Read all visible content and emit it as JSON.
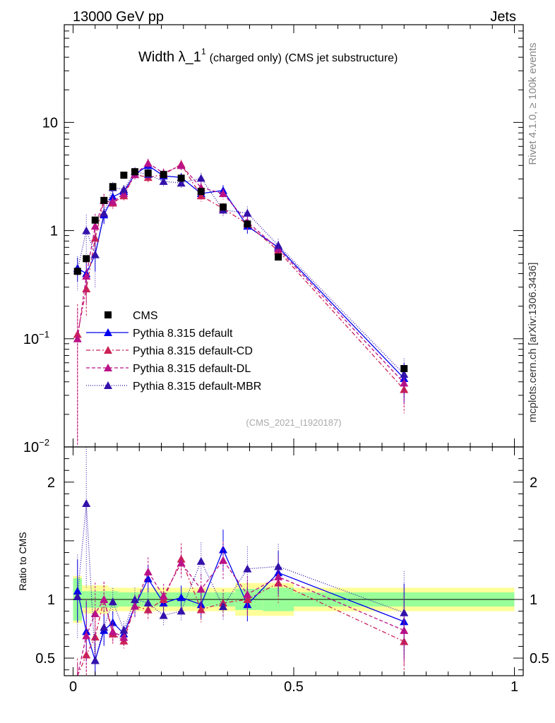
{
  "header": {
    "energy": "13000 GeV pp",
    "category": "Jets"
  },
  "side": {
    "rivet": "Rivet 4.1.0, ≥ 100k events",
    "mcplots": "mcplots.cern.ch [arXiv:1306.3436]"
  },
  "chart_data": {
    "type": "scatter",
    "title_main": "Width λ_1",
    "title_sup": "1",
    "title_rest": "(charged only) (CMS jet substructure)",
    "analysis_id": "(CMS_2021_I1920187)",
    "xlabel": "",
    "ylabel": "",
    "ratio_ylabel": "Ratio to CMS",
    "xlim": [
      -0.02,
      1.02
    ],
    "ylim_main": [
      0.01,
      80
    ],
    "ylim_ratio": [
      0.35,
      2.3
    ],
    "yscale_main": "log",
    "x_tick_labels": [
      "0",
      "0.5",
      "1"
    ],
    "main_y_tick_labels": [
      {
        "base": "10",
        "exp": "−2",
        "value": 0.01
      },
      {
        "base": "10",
        "exp": "−1",
        "value": 0.1
      },
      {
        "base": "1",
        "exp": "",
        "value": 1
      },
      {
        "base": "10",
        "exp": "",
        "value": 10
      }
    ],
    "ratio_y_tick_labels": [
      "0.5",
      "1",
      "2"
    ],
    "legend_position": "lower-left",
    "x": [
      0.01,
      0.03,
      0.05,
      0.07,
      0.09,
      0.115,
      0.14,
      0.17,
      0.205,
      0.245,
      0.29,
      0.34,
      0.395,
      0.465,
      0.75
    ],
    "cms": {
      "name": "CMS",
      "color": "#000000",
      "values": [
        0.42,
        0.55,
        1.25,
        1.9,
        2.55,
        3.25,
        3.5,
        3.4,
        3.3,
        3.05,
        2.3,
        1.65,
        1.15,
        0.57,
        0.053
      ],
      "band_inner": [
        0.18,
        0.07,
        0.07,
        0.07,
        0.07,
        0.06,
        0.06,
        0.06,
        0.06,
        0.06,
        0.06,
        0.06,
        0.09,
        0.1,
        0.06
      ],
      "band_outer": [
        0.2,
        0.12,
        0.12,
        0.12,
        0.1,
        0.1,
        0.1,
        0.1,
        0.1,
        0.1,
        0.1,
        0.1,
        0.14,
        0.14,
        0.1
      ]
    },
    "series": [
      {
        "name": "Pythia 8.315 default",
        "color": "#0000ee",
        "dash": "",
        "values": [
          0.45,
          0.4,
          0.6,
          1.4,
          2.05,
          2.3,
          3.3,
          4.0,
          3.2,
          3.1,
          2.2,
          2.35,
          1.1,
          0.7,
          0.043
        ],
        "rel_err": [
          0.25,
          0.35,
          0.3,
          0.18,
          0.12,
          0.1,
          0.1,
          0.1,
          0.1,
          0.1,
          0.12,
          0.12,
          0.15,
          0.15,
          0.4
        ]
      },
      {
        "name": "Pythia 8.315 default-CD",
        "color": "#cc2255",
        "dash": "6,3,2,3",
        "values": [
          0.11,
          0.29,
          0.85,
          1.9,
          1.8,
          2.1,
          3.3,
          3.1,
          3.3,
          4.1,
          2.1,
          1.6,
          1.15,
          0.65,
          0.034
        ],
        "rel_err": [
          0.9,
          0.45,
          0.3,
          0.15,
          0.12,
          0.1,
          0.1,
          0.1,
          0.1,
          0.1,
          0.12,
          0.12,
          0.15,
          0.15,
          0.4
        ]
      },
      {
        "name": "Pythia 8.315 default-DL",
        "color": "#bb1188",
        "dash": "5,3",
        "values": [
          0.1,
          0.38,
          1.1,
          1.9,
          1.85,
          2.2,
          3.3,
          4.2,
          3.4,
          4.0,
          2.5,
          2.2,
          1.2,
          0.68,
          0.039
        ],
        "rel_err": [
          0.9,
          0.45,
          0.3,
          0.15,
          0.12,
          0.1,
          0.1,
          0.1,
          0.1,
          0.1,
          0.12,
          0.12,
          0.15,
          0.15,
          0.4
        ]
      },
      {
        "name": "Pythia 8.315 default-MBR",
        "color": "#3311aa",
        "dash": "1,2",
        "values": [
          0.43,
          1.0,
          0.6,
          1.45,
          2.5,
          2.4,
          3.5,
          3.3,
          2.85,
          2.75,
          3.05,
          1.55,
          1.45,
          0.73,
          0.047
        ],
        "rel_err": [
          0.35,
          0.4,
          0.5,
          0.2,
          0.12,
          0.1,
          0.1,
          0.1,
          0.1,
          0.1,
          0.12,
          0.12,
          0.15,
          0.15,
          0.4
        ]
      }
    ]
  }
}
